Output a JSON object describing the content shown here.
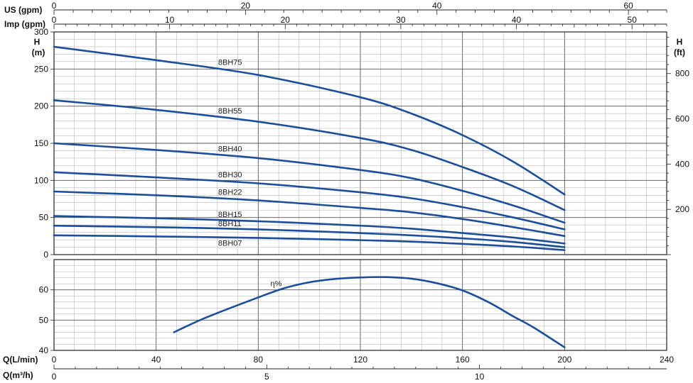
{
  "chart_data": [
    {
      "type": "line",
      "panel": "head",
      "top_axes": [
        {
          "label": "US (gpm)",
          "ticks": [
            "0",
            "20",
            "40",
            "60"
          ],
          "range": [
            0,
            64
          ]
        },
        {
          "label": "Imp (gpm)",
          "ticks": [
            "0",
            "10",
            "20",
            "30",
            "40",
            "50"
          ],
          "range": [
            0,
            53
          ]
        }
      ],
      "left_axis": {
        "label": "H\n(m)",
        "ticks": [
          "0",
          "50",
          "100",
          "150",
          "200",
          "250",
          "300"
        ],
        "range": [
          0,
          300
        ]
      },
      "right_axis": {
        "label": "H\n(ft)",
        "ticks": [
          "200",
          "400",
          "600",
          "800"
        ],
        "range": [
          0,
          984
        ]
      },
      "x_range": [
        0,
        240
      ],
      "grid": true,
      "series": [
        {
          "name": "8BH75",
          "x": [
            0,
            40,
            80,
            120,
            140,
            160,
            180,
            200
          ],
          "y": [
            280,
            262,
            242,
            212,
            190,
            161,
            125,
            81
          ]
        },
        {
          "name": "8BH55",
          "x": [
            0,
            40,
            80,
            120,
            140,
            160,
            180,
            200
          ],
          "y": [
            208,
            195,
            179,
            157,
            141,
            118,
            92,
            60
          ]
        },
        {
          "name": "8BH40",
          "x": [
            0,
            40,
            80,
            120,
            140,
            160,
            180,
            200
          ],
          "y": [
            150,
            141,
            130,
            114,
            103,
            86,
            66,
            43
          ]
        },
        {
          "name": "8BH30",
          "x": [
            0,
            40,
            80,
            120,
            140,
            160,
            180,
            200
          ],
          "y": [
            111,
            104,
            96,
            84,
            76,
            64,
            50,
            34
          ]
        },
        {
          "name": "8BH22",
          "x": [
            0,
            40,
            80,
            120,
            140,
            160,
            180,
            200
          ],
          "y": [
            85,
            80,
            73,
            63,
            57,
            48,
            37,
            25
          ]
        },
        {
          "name": "8BH15",
          "x": [
            0,
            40,
            80,
            120,
            140,
            160,
            180,
            200
          ],
          "y": [
            52,
            49,
            45,
            39,
            35,
            29,
            23,
            15
          ]
        },
        {
          "name": "8BH11",
          "x": [
            0,
            40,
            80,
            120,
            140,
            160,
            180,
            200
          ],
          "y": [
            39,
            37,
            34,
            29,
            26,
            22,
            17,
            10
          ]
        },
        {
          "name": "8BH07",
          "x": [
            0,
            40,
            80,
            120,
            140,
            160,
            180,
            200
          ],
          "y": [
            26,
            24.5,
            22.5,
            19.5,
            17.5,
            14.5,
            11,
            6
          ]
        }
      ]
    },
    {
      "type": "line",
      "panel": "efficiency",
      "left_axis": {
        "ticks": [
          "40",
          "50",
          "60"
        ],
        "range": [
          40,
          70
        ]
      },
      "x_range": [
        0,
        240
      ],
      "grid": true,
      "series": [
        {
          "name": "η%",
          "x": [
            47,
            60,
            80,
            90,
            100,
            110,
            120,
            130,
            140,
            150,
            160,
            170,
            180,
            188,
            200
          ],
          "y": [
            46,
            51,
            57.5,
            60.5,
            62.5,
            63.6,
            64.1,
            64.2,
            63.7,
            62.2,
            59.8,
            56,
            51.2,
            47.5,
            41
          ]
        }
      ],
      "bottom_axes": [
        {
          "label": "Q(L/min)",
          "ticks": [
            "0",
            "40",
            "80",
            "120",
            "160",
            "200",
            "240"
          ],
          "range": [
            0,
            240
          ]
        },
        {
          "label": "Q(m³/h)",
          "ticks": [
            "0",
            "5",
            "10"
          ],
          "range": [
            0,
            14.4
          ]
        }
      ]
    }
  ]
}
